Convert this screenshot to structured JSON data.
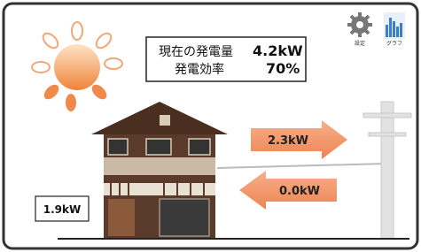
{
  "status": {
    "current_label": "現在の発電量",
    "current_value": "4.2kW",
    "efficiency_label": "発電効率",
    "efficiency_value": "70%"
  },
  "toolbar": {
    "settings": "設定",
    "graph": "グラフ"
  },
  "flows": {
    "sell": "2.3kW",
    "buy": "0.0kW"
  },
  "consumption": "1.9kW"
}
